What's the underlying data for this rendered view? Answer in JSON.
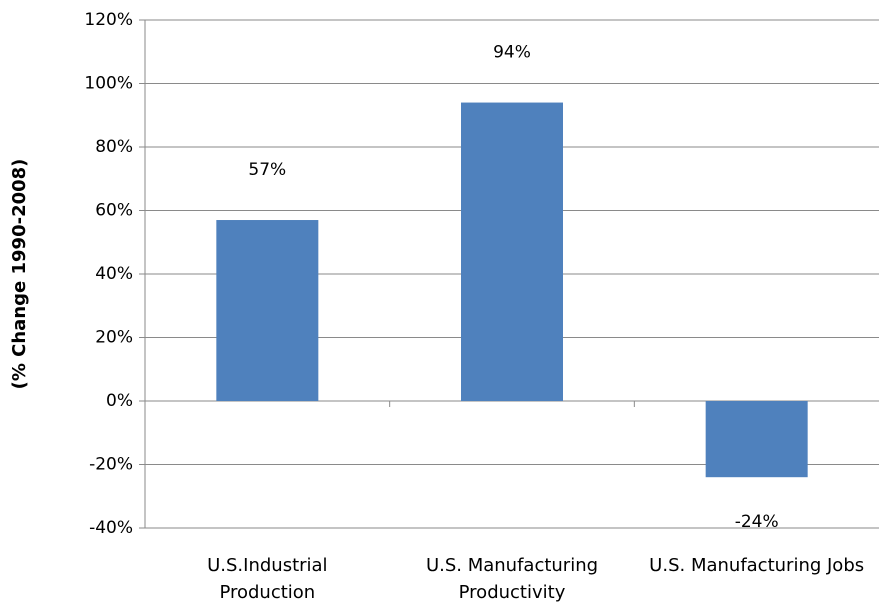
{
  "chart_data": {
    "type": "bar",
    "y_label": "(% Change 1990-2008)",
    "categories": [
      "U.S.Industrial Production",
      "U.S. Manufacturing Productivity",
      "U.S. Manufacturing Jobs"
    ],
    "values": [
      57,
      94,
      -24
    ],
    "value_labels": [
      "57%",
      "94%",
      "-24%"
    ],
    "color": "#4f81bd",
    "ylim": [
      -40,
      120
    ],
    "yticks": [
      {
        "value": -40,
        "label": "-40%"
      },
      {
        "value": -20,
        "label": "-20%"
      },
      {
        "value": 0,
        "label": "0%"
      },
      {
        "value": 20,
        "label": "20%"
      },
      {
        "value": 40,
        "label": "40%"
      },
      {
        "value": 60,
        "label": "60%"
      },
      {
        "value": 80,
        "label": "80%"
      },
      {
        "value": 100,
        "label": "100%"
      },
      {
        "value": 120,
        "label": "120%"
      }
    ],
    "grid": true
  }
}
